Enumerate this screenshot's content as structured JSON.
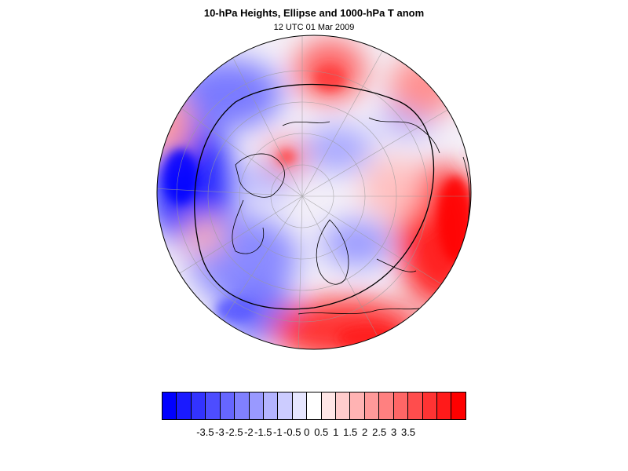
{
  "header": {
    "title": "10-hPa Heights, Ellipse and 1000-hPa T anom",
    "subtitle": "12 UTC 01 Mar 2009"
  },
  "map": {
    "projection": "orthographic-polar-stereographic",
    "field": "temperature-anomaly",
    "overlays": [
      "coastlines",
      "lat-lon-grid",
      "10-hPa ellipse contour"
    ],
    "colors": {
      "cold_strong": "#0000ff",
      "neutral": "#ffffff",
      "warm_strong": "#ff0000",
      "coast": "#000000"
    }
  },
  "colorbar": {
    "cells": [
      "#0000ff",
      "#1a1aff",
      "#3333ff",
      "#4d4dff",
      "#6666ff",
      "#8080ff",
      "#9999ff",
      "#b3b3ff",
      "#ccccff",
      "#e6e6ff",
      "#ffffff",
      "#ffe6e6",
      "#ffcccc",
      "#ffb3b3",
      "#ff9999",
      "#ff8080",
      "#ff6666",
      "#ff4d4d",
      "#ff3333",
      "#ff1a1a",
      "#ff0000"
    ],
    "labels": [
      "-3.5",
      "-3",
      "-2.5",
      "-2",
      "-1.5",
      "-1",
      "-0.5",
      "0",
      "0.5",
      "1",
      "1.5",
      "2",
      "2.5",
      "3",
      "3.5"
    ]
  }
}
